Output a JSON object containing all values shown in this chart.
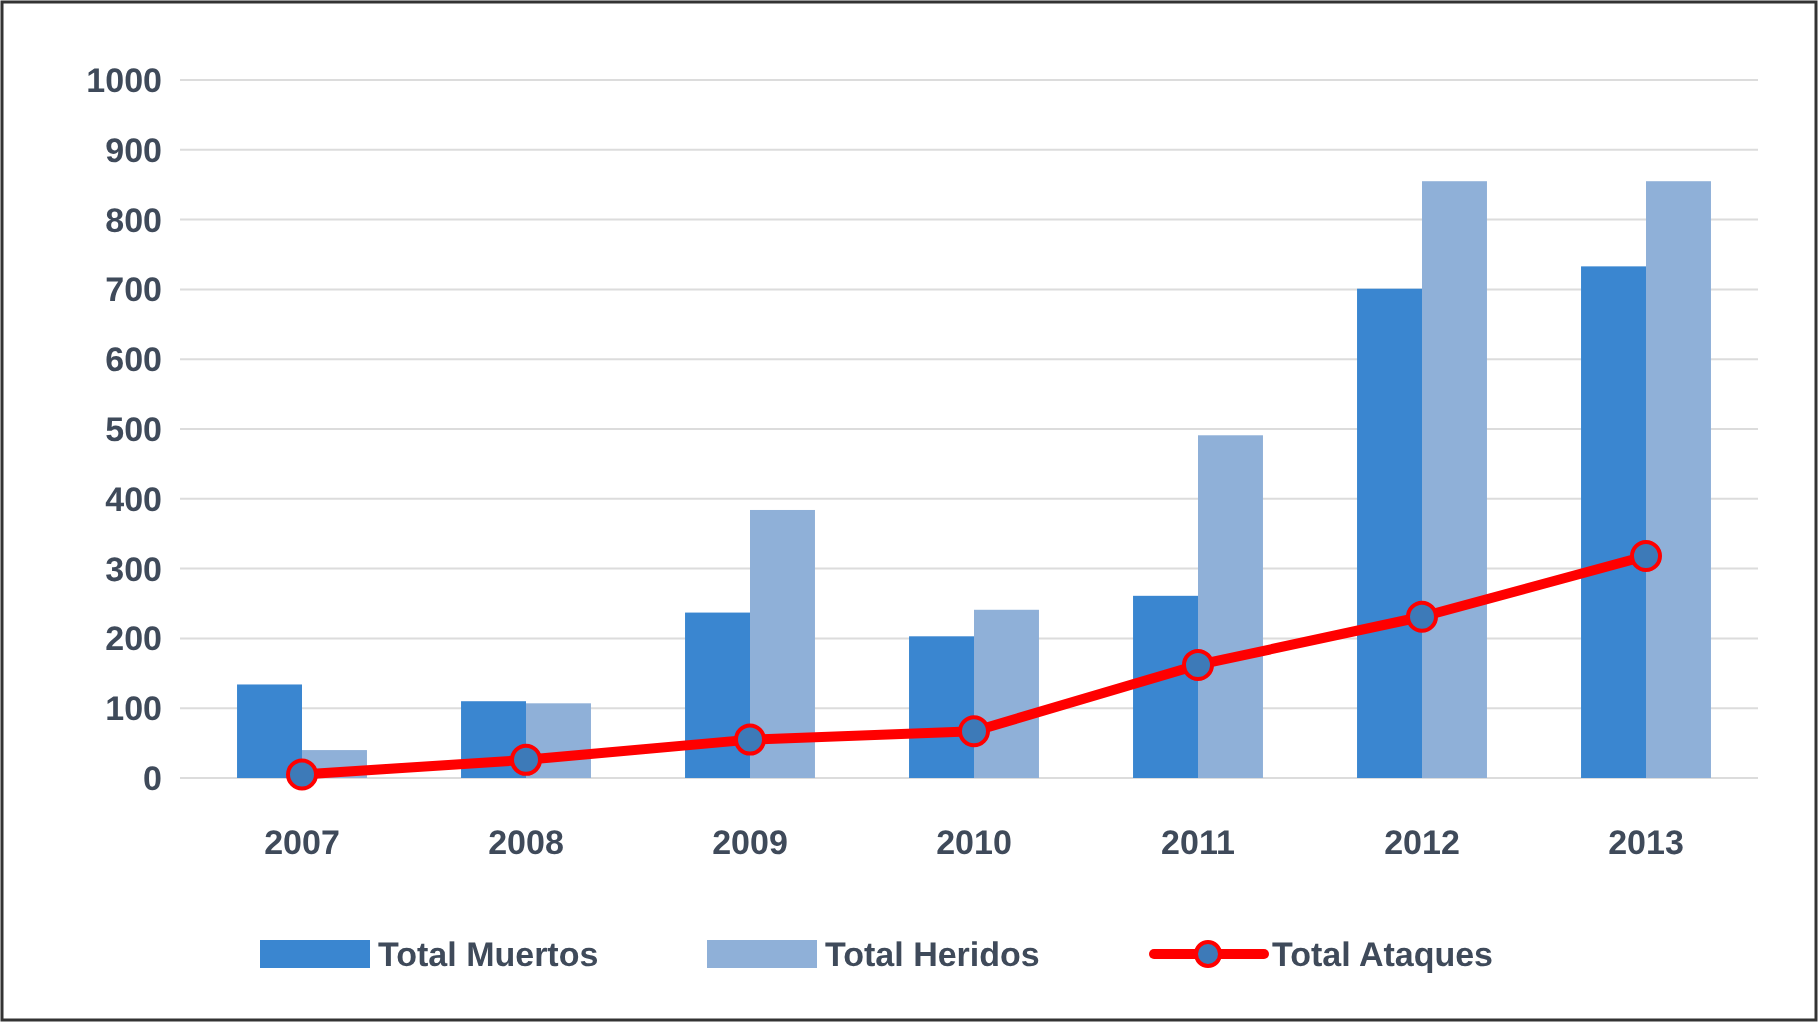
{
  "chart_data": {
    "type": "bar",
    "categories": [
      "2007",
      "2008",
      "2009",
      "2010",
      "2011",
      "2012",
      "2013"
    ],
    "series": [
      {
        "name": "Total Muertos",
        "color": "#3a86d0",
        "values": [
          134,
          110,
          237,
          203,
          261,
          701,
          733
        ]
      },
      {
        "name": "Total Heridos",
        "color": "#8fb0d8",
        "values": [
          40,
          107,
          384,
          241,
          491,
          855,
          855
        ]
      },
      {
        "name": "Total Ataques",
        "type": "line",
        "color": "#ff0000",
        "marker": "circle",
        "values": [
          5,
          26,
          55,
          67,
          162,
          231,
          318
        ]
      }
    ],
    "ylim": [
      0,
      1000
    ],
    "yticks": [
      0,
      100,
      200,
      300,
      400,
      500,
      600,
      700,
      800,
      900,
      1000
    ],
    "grid": "y",
    "legend": "bottom"
  }
}
